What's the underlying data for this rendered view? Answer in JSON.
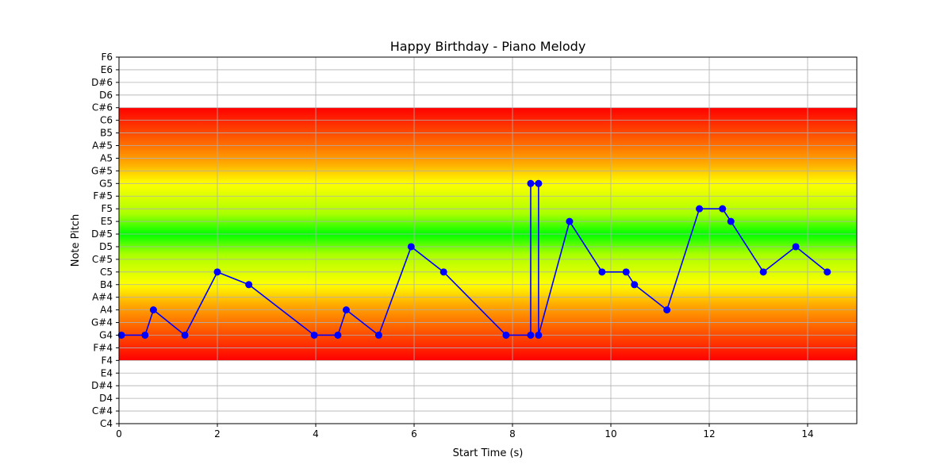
{
  "chart_data": {
    "type": "line",
    "title": "Happy Birthday - Piano Melody",
    "xlabel": "Start Time (s)",
    "ylabel": "Note Pitch",
    "xlim": [
      0,
      15
    ],
    "x_ticks": [
      0,
      2,
      4,
      6,
      8,
      10,
      12,
      14
    ],
    "y_ticks": [
      "C4",
      "C#4",
      "D4",
      "D#4",
      "E4",
      "F4",
      "F#4",
      "G4",
      "G#4",
      "A4",
      "A#4",
      "B4",
      "C5",
      "C#5",
      "D5",
      "D#5",
      "E5",
      "F5",
      "F#5",
      "G5",
      "G#5",
      "A5",
      "A#5",
      "B5",
      "C6",
      "C#6",
      "D6",
      "D#6",
      "E6",
      "F6"
    ],
    "grid": true,
    "highlight_band": {
      "from": "F4",
      "to": "C#6",
      "colors": [
        "#ff0000",
        "#ffa500",
        "#ffff00",
        "#00ff00"
      ]
    },
    "series": [
      {
        "color": "#0000ff",
        "x": [
          0.05,
          0.53,
          0.7,
          1.34,
          2.0,
          2.64,
          3.97,
          4.45,
          4.62,
          5.28,
          5.94,
          6.6,
          7.87,
          8.37,
          8.37,
          8.53,
          8.53,
          9.16,
          9.82,
          10.31,
          10.48,
          11.14,
          11.8,
          12.27,
          12.44,
          13.1,
          13.76,
          14.4
        ],
        "y": [
          "G4",
          "G4",
          "A4",
          "G4",
          "C5",
          "B4",
          "G4",
          "G4",
          "A4",
          "G4",
          "D5",
          "C5",
          "G4",
          "G4",
          "G5",
          "G5",
          "G4",
          "E5",
          "C5",
          "C5",
          "B4",
          "A4",
          "F5",
          "F5",
          "E5",
          "C5",
          "D5",
          "C5"
        ]
      }
    ]
  }
}
